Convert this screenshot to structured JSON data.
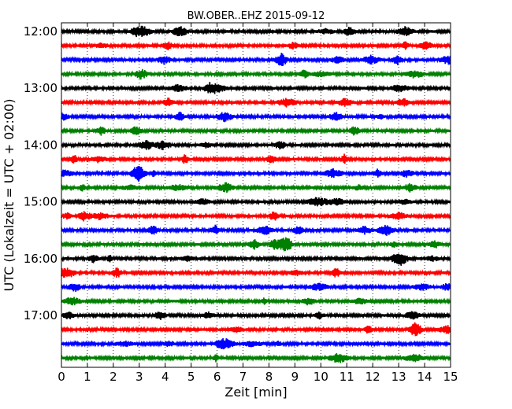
{
  "chart_data": {
    "type": "line",
    "title": "BW.OBER..EHZ 2015-09-12",
    "xlabel": "Zeit  [min]",
    "ylabel": "UTC (Lokalzeit = UTC + 02:00)",
    "xlim": [
      0,
      15
    ],
    "x_ticks": [
      "0",
      "1",
      "2",
      "3",
      "4",
      "5",
      "6",
      "7",
      "8",
      "9",
      "10",
      "11",
      "12",
      "13",
      "14",
      "15"
    ],
    "y_tick_labels": [
      "12:00",
      "13:00",
      "14:00",
      "15:00",
      "16:00",
      "17:00"
    ],
    "grid": {
      "x": true,
      "y": false,
      "style": "dotted"
    },
    "trace_colors": [
      "#000000",
      "#ff0000",
      "#0000ff",
      "#008000"
    ],
    "series": [
      {
        "start": "12:00",
        "color": "#000000"
      },
      {
        "start": "12:15",
        "color": "#ff0000"
      },
      {
        "start": "12:30",
        "color": "#0000ff"
      },
      {
        "start": "12:45",
        "color": "#008000"
      },
      {
        "start": "13:00",
        "color": "#000000"
      },
      {
        "start": "13:15",
        "color": "#ff0000"
      },
      {
        "start": "13:30",
        "color": "#0000ff"
      },
      {
        "start": "13:45",
        "color": "#008000"
      },
      {
        "start": "14:00",
        "color": "#000000"
      },
      {
        "start": "14:15",
        "color": "#ff0000"
      },
      {
        "start": "14:30",
        "color": "#0000ff"
      },
      {
        "start": "14:45",
        "color": "#008000"
      },
      {
        "start": "15:00",
        "color": "#000000"
      },
      {
        "start": "15:15",
        "color": "#ff0000"
      },
      {
        "start": "15:30",
        "color": "#0000ff"
      },
      {
        "start": "15:45",
        "color": "#008000"
      },
      {
        "start": "16:00",
        "color": "#000000"
      },
      {
        "start": "16:15",
        "color": "#ff0000"
      },
      {
        "start": "16:30",
        "color": "#0000ff"
      },
      {
        "start": "16:45",
        "color": "#008000"
      },
      {
        "start": "17:00",
        "color": "#000000"
      },
      {
        "start": "17:15",
        "color": "#ff0000"
      },
      {
        "start": "17:30",
        "color": "#0000ff"
      },
      {
        "start": "17:45",
        "color": "#008000"
      }
    ]
  }
}
